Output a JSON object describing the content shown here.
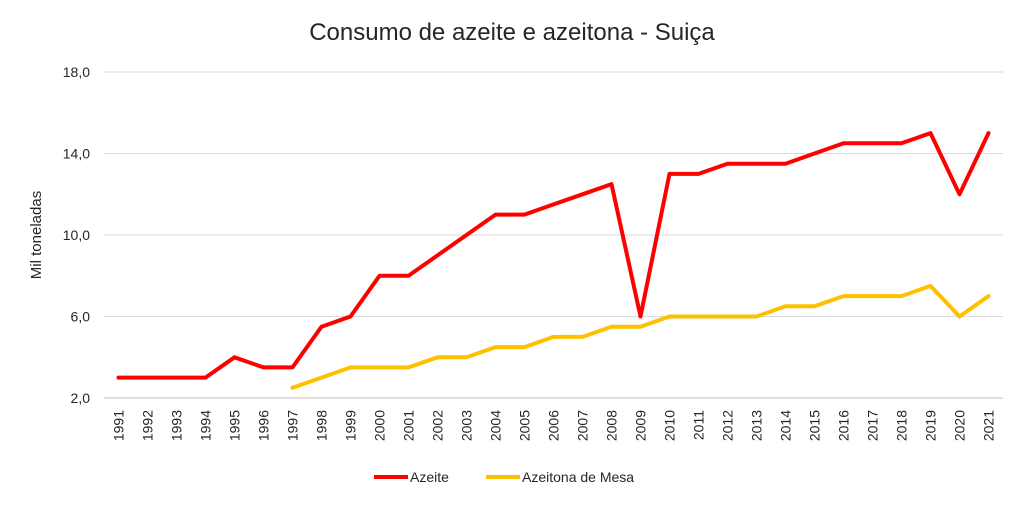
{
  "chart_data": {
    "type": "line",
    "title": "Consumo de azeite e azeitona - Suiça",
    "xlabel": "",
    "ylabel": "Mil toneladas",
    "ylim": [
      2,
      18
    ],
    "yticks": [
      "2,0",
      "6,0",
      "10,0",
      "14,0",
      "18,0"
    ],
    "grid": true,
    "legend": "bottom",
    "categories": [
      "1991",
      "1992",
      "1993",
      "1994",
      "1995",
      "1996",
      "1997",
      "1998",
      "1999",
      "2000",
      "2001",
      "2002",
      "2003",
      "2004",
      "2005",
      "2006",
      "2007",
      "2008",
      "2009",
      "2010",
      "2011",
      "2012",
      "2013",
      "2014",
      "2015",
      "2016",
      "2017",
      "2018",
      "2019",
      "2020",
      "2021"
    ],
    "series": [
      {
        "name": "Azeite",
        "color": "#ff0000",
        "values": [
          3.0,
          3.0,
          3.0,
          3.0,
          4.0,
          3.5,
          3.5,
          5.5,
          6.0,
          8.0,
          8.0,
          9.0,
          10.0,
          11.0,
          11.0,
          11.5,
          12.0,
          12.5,
          6.0,
          13.0,
          13.0,
          13.5,
          13.5,
          13.5,
          14.0,
          14.5,
          14.5,
          14.5,
          15.0,
          12.0,
          15.0
        ]
      },
      {
        "name": "Azeitona de Mesa",
        "color": "#ffc000",
        "values": [
          null,
          null,
          null,
          null,
          null,
          null,
          2.5,
          3.0,
          3.5,
          3.5,
          3.5,
          4.0,
          4.0,
          4.5,
          4.5,
          5.0,
          5.0,
          5.5,
          5.5,
          6.0,
          6.0,
          6.0,
          6.0,
          6.5,
          6.5,
          7.0,
          7.0,
          7.0,
          7.5,
          6.0,
          7.0
        ]
      }
    ]
  }
}
